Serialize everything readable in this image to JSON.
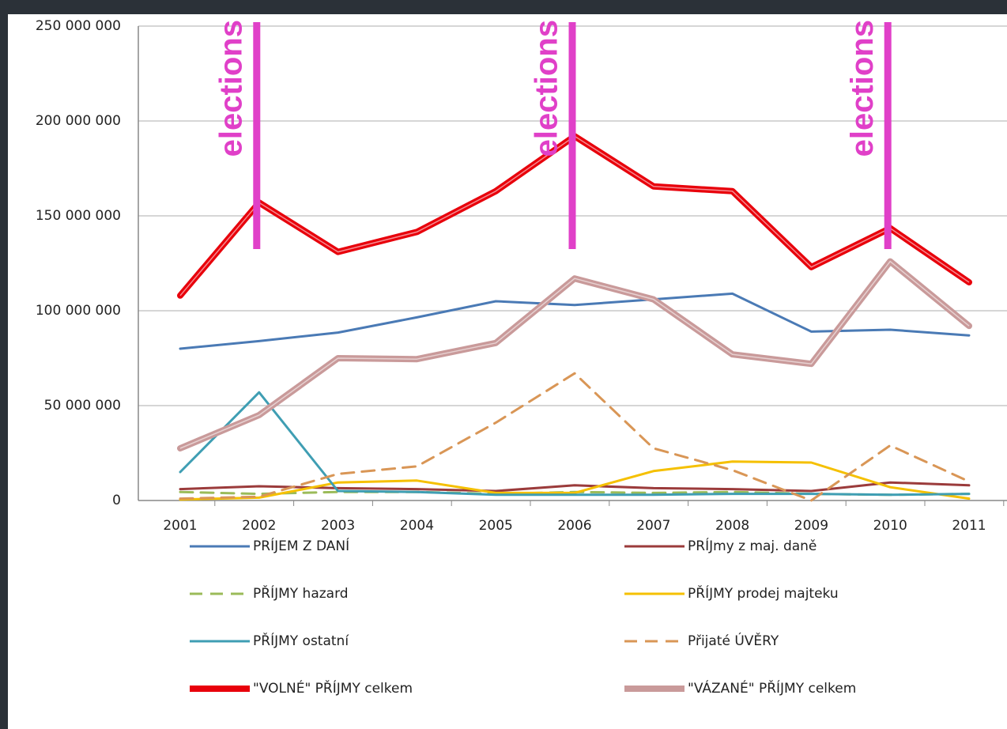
{
  "chart_data": {
    "type": "line",
    "categories": [
      "2001",
      "2002",
      "2003",
      "2004",
      "2005",
      "2006",
      "2007",
      "2008",
      "2009",
      "2010",
      "2011"
    ],
    "ylim": [
      0,
      250000000
    ],
    "yticks": [
      {
        "value": 0,
        "label": "0"
      },
      {
        "value": 50000000,
        "label": "50 000 000"
      },
      {
        "value": 100000000,
        "label": "100 000 000"
      },
      {
        "value": 150000000,
        "label": "150 000 000"
      },
      {
        "value": 200000000,
        "label": "200 000 000"
      },
      {
        "value": 250000000,
        "label": "250 000 000"
      }
    ],
    "grid": true,
    "legend": "bottom",
    "annotations": [
      {
        "text": "elections",
        "category": "2002"
      },
      {
        "text": "elections",
        "category": "2006"
      },
      {
        "text": "elections",
        "category": "2010"
      }
    ],
    "annotation_color": "#e040c8",
    "series": [
      {
        "name": "PRÍJEM Z DANÍ",
        "color": "#4a7ab5",
        "width": 3,
        "dash": false,
        "values": [
          80000000,
          84000000,
          88500000,
          96500000,
          105000000,
          103000000,
          106000000,
          109000000,
          89000000,
          90000000,
          87000000
        ]
      },
      {
        "name": "PRÍJmy z maj. daně",
        "color": "#9b3b3b",
        "width": 3,
        "dash": false,
        "values": [
          6000000,
          7500000,
          6500000,
          6000000,
          5000000,
          8000000,
          6500000,
          6000000,
          5000000,
          9500000,
          8000000
        ]
      },
      {
        "name": "PŘÍJMY hazard",
        "color": "#9bbb59",
        "width": 3,
        "dash": true,
        "values": [
          4500000,
          3500000,
          4500000,
          4500000,
          3500000,
          4500000,
          4000000,
          4500000,
          3500000,
          3000000,
          3500000
        ]
      },
      {
        "name": "PŘÍJMY prodej majteku",
        "color": "#f5c000",
        "width": 3,
        "dash": false,
        "values": [
          500000,
          1500000,
          9500000,
          10500000,
          4000000,
          4000000,
          15500000,
          20500000,
          20000000,
          7000000,
          1000000
        ]
      },
      {
        "name": "PŘÍJMY ostatní",
        "color": "#3f9eb3",
        "width": 3,
        "dash": false,
        "values": [
          15000000,
          57000000,
          5000000,
          4500000,
          3000000,
          3000000,
          3000000,
          3500000,
          3500000,
          3000000,
          3500000
        ]
      },
      {
        "name": "Přijaté ÚVĚRY",
        "color": "#d99656",
        "width": 3,
        "dash": true,
        "values": [
          1000000,
          2000000,
          14000000,
          18000000,
          41000000,
          67000000,
          27500000,
          16000000,
          0,
          29000000,
          10000000
        ]
      },
      {
        "name": "\"VOLNÉ\" PŘÍJMY celkem",
        "color": "#e8000b",
        "width": 8,
        "dash": false,
        "values": [
          108000000,
          157000000,
          131000000,
          141500000,
          163000000,
          192000000,
          165500000,
          163000000,
          123000000,
          143500000,
          115000000
        ]
      },
      {
        "name": "\"VÁZANÉ\" PŘÍJMY celkem",
        "color": "#c99a9a",
        "width": 8,
        "dash": false,
        "values": [
          27500000,
          45000000,
          75000000,
          74500000,
          83000000,
          117000000,
          106000000,
          77000000,
          72000000,
          126000000,
          92000000
        ]
      }
    ]
  }
}
